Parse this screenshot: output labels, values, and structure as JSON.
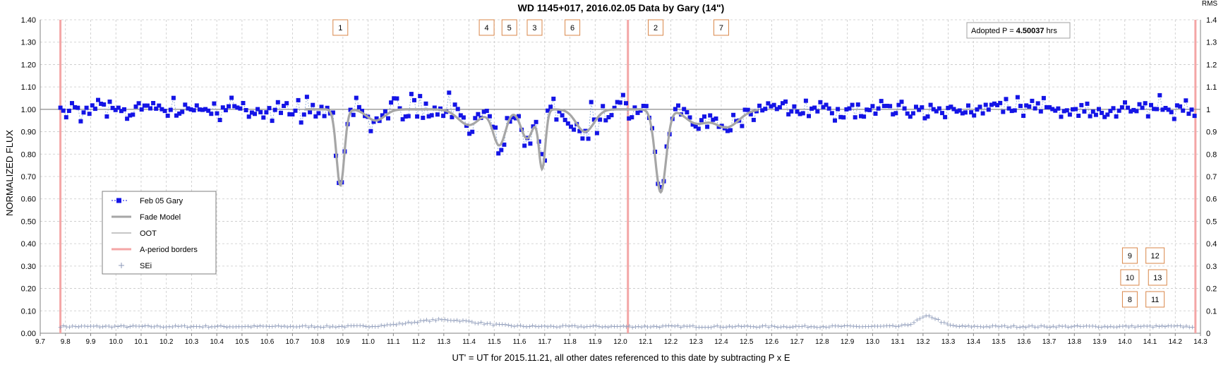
{
  "chart_data": {
    "type": "scatter",
    "title": "WD 1145+017, 2016.02.05 Data by Gary (14\")",
    "xlabel": "UT' = UT for 2015.11.21, all other dates referenced to this date by subtracting P x E",
    "ylabel": "NORMALIZED FLUX",
    "right_axis_title": "RMS",
    "xlim": [
      9.7,
      14.3
    ],
    "ylim": [
      0.0,
      1.4
    ],
    "x_ticks": [
      "9.7",
      "9.8",
      "9.9",
      "10.0",
      "10.1",
      "10.2",
      "10.3",
      "10.4",
      "10.5",
      "10.6",
      "10.7",
      "10.8",
      "10.9",
      "11.0",
      "11.1",
      "11.2",
      "11.3",
      "11.4",
      "11.5",
      "11.6",
      "11.7",
      "11.8",
      "11.9",
      "12.0",
      "12.1",
      "12.2",
      "12.3",
      "12.4",
      "12.5",
      "12.6",
      "12.7",
      "12.8",
      "12.9",
      "13.0",
      "13.1",
      "13.2",
      "13.3",
      "13.4",
      "13.5",
      "13.6",
      "13.7",
      "13.8",
      "13.9",
      "14.0",
      "14.1",
      "14.2",
      "14.3"
    ],
    "y_ticks_left": [
      "0.00",
      "0.10",
      "0.20",
      "0.30",
      "0.40",
      "0.50",
      "0.60",
      "0.70",
      "0.80",
      "0.90",
      "1.00",
      "1.10",
      "1.20",
      "1.30",
      "1.40"
    ],
    "y_ticks_right": [
      "0",
      "0.1",
      "0.2",
      "0.3",
      "0.4",
      "0.5",
      "0.6",
      "0.7",
      "0.8",
      "0.9",
      "1",
      "1.1",
      "1.2",
      "1.3",
      "1.4"
    ],
    "grid": true,
    "legend_position": "left-middle",
    "legend": [
      "Feb 05 Gary",
      "Fade Model",
      "OOT",
      "A-period borders",
      "SEi"
    ],
    "adopted_period": {
      "prefix": "Adopted P = ",
      "value": "4.50037",
      "suffix": " hrs"
    },
    "a_period_borders_x": [
      9.78,
      12.03,
      14.28
    ],
    "oot_level": 1.0,
    "fade_model": {
      "baseline": 1.0,
      "dips": [
        {
          "center": 10.89,
          "depth": 0.34,
          "width": 0.022
        },
        {
          "center": 11.03,
          "depth": 0.05,
          "width": 0.05
        },
        {
          "center": 11.4,
          "depth": 0.07,
          "width": 0.06
        },
        {
          "center": 11.52,
          "depth": 0.16,
          "width": 0.035
        },
        {
          "center": 11.63,
          "depth": 0.13,
          "width": 0.035
        },
        {
          "center": 11.69,
          "depth": 0.26,
          "width": 0.018
        },
        {
          "center": 11.86,
          "depth": 0.1,
          "width": 0.05
        },
        {
          "center": 12.16,
          "depth": 0.37,
          "width": 0.03
        },
        {
          "center": 12.3,
          "depth": 0.06,
          "width": 0.06
        },
        {
          "center": 12.42,
          "depth": 0.08,
          "width": 0.07
        }
      ]
    },
    "series": [
      {
        "name": "Feb 05 Gary",
        "color": "#1414e6",
        "style": "square markers with dashed light-blue connector",
        "noise": 0.035
      },
      {
        "name": "SEi",
        "color": "#8c99b8",
        "style": "plus markers",
        "baseline": 0.03,
        "bumps": [
          {
            "center": 11.3,
            "height": 0.03,
            "width": 0.18
          },
          {
            "center": 13.22,
            "height": 0.045,
            "width": 0.06
          }
        ]
      }
    ],
    "event_labels": [
      {
        "label": "1",
        "x": 10.89,
        "row": 1
      },
      {
        "label": "4",
        "x": 11.47,
        "row": 1
      },
      {
        "label": "5",
        "x": 11.56,
        "row": 1
      },
      {
        "label": "3",
        "x": 11.66,
        "row": 1
      },
      {
        "label": "6",
        "x": 11.81,
        "row": 1
      },
      {
        "label": "2",
        "x": 12.14,
        "row": 1
      },
      {
        "label": "7",
        "x": 12.4,
        "row": 1
      },
      {
        "label": "9",
        "x": 14.02,
        "row": 2
      },
      {
        "label": "12",
        "x": 14.12,
        "row": 2
      },
      {
        "label": "10",
        "x": 14.02,
        "row": 3
      },
      {
        "label": "13",
        "x": 14.13,
        "row": 3
      },
      {
        "label": "8",
        "x": 14.02,
        "row": 4
      },
      {
        "label": "11",
        "x": 14.12,
        "row": 4
      }
    ],
    "colors": {
      "data": "#1414e6",
      "connector": "#7f9fd6",
      "fade_model": "#a6a6a6",
      "oot": "#8c8c8c",
      "border": "#f4a6a6",
      "sei": "#8c99b8",
      "label_border": "#d9874a"
    }
  }
}
